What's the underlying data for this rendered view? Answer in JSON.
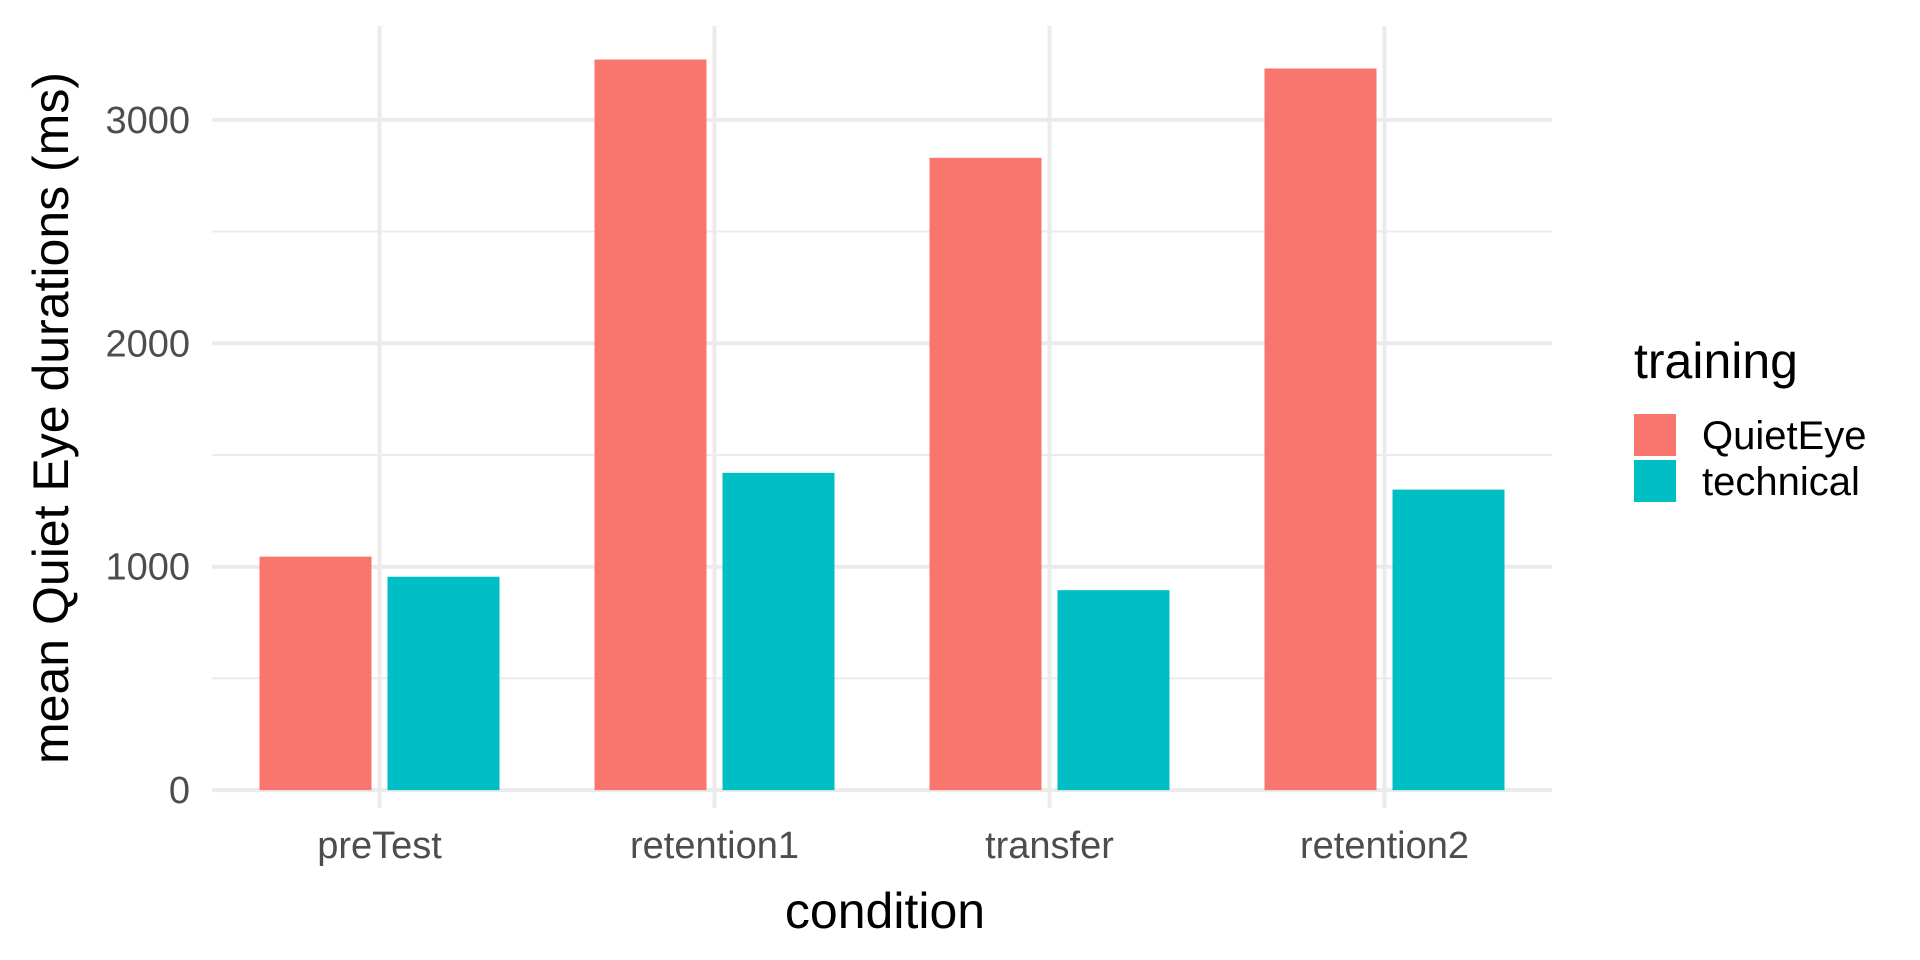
{
  "chart_data": {
    "type": "bar",
    "xlabel": "condition",
    "ylabel": "mean Quiet Eye durations (ms)",
    "categories": [
      "preTest",
      "retention1",
      "transfer",
      "retention2"
    ],
    "series": [
      {
        "name": "QuietEye",
        "color": "#F8766D",
        "values": [
          1045,
          3270,
          2830,
          3230
        ]
      },
      {
        "name": "technical",
        "color": "#00BFC4",
        "values": [
          955,
          1420,
          895,
          1345
        ]
      }
    ],
    "ylim": [
      -80,
      3420
    ],
    "yticks": [
      0,
      1000,
      2000,
      3000
    ],
    "ytick_labels": [
      "0",
      "1000",
      "2000",
      "3000"
    ],
    "grid": true,
    "legend": {
      "title": "training",
      "placement": "right"
    }
  }
}
